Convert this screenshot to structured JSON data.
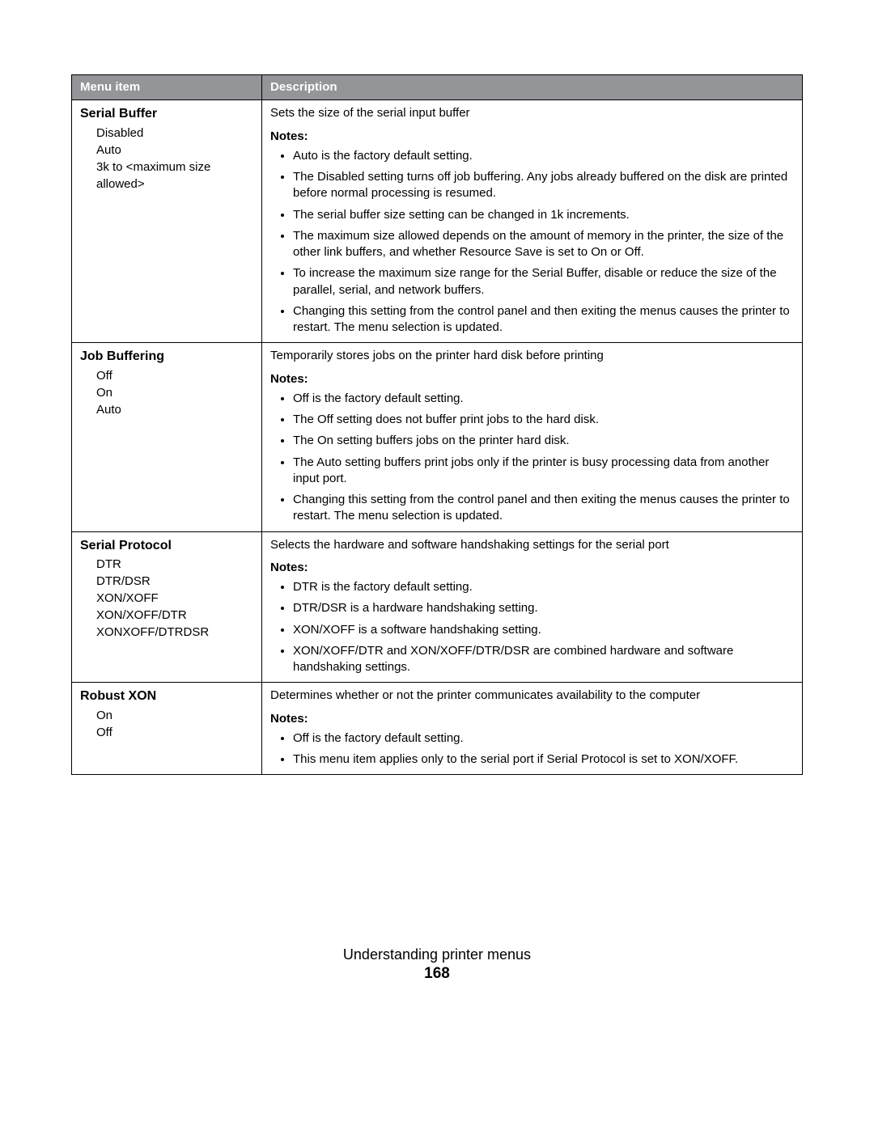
{
  "header": {
    "menu_item": "Menu item",
    "description": "Description"
  },
  "rows": [
    {
      "title": "Serial Buffer",
      "options": [
        "Disabled",
        "Auto",
        "3k to <maximum size allowed>"
      ],
      "summary": "Sets the size of the serial input buffer",
      "notes_label": "Notes:",
      "notes": [
        "Auto is the factory default setting.",
        "The Disabled setting turns off job buffering. Any jobs already buffered on the disk are printed before normal processing is resumed.",
        "The serial buffer size setting can be changed in 1k increments.",
        "The maximum size allowed depends on the amount of memory in the printer, the size of the other link buffers, and whether Resource Save is set to On or Off.",
        "To increase the maximum size range for the Serial Buffer, disable or reduce the size of the parallel, serial, and network buffers.",
        "Changing this setting from the control panel and then exiting the menus causes the printer to restart. The menu selection is updated."
      ]
    },
    {
      "title": "Job Buffering",
      "options": [
        "Off",
        "On",
        "Auto"
      ],
      "summary": "Temporarily stores jobs on the printer hard disk before printing",
      "notes_label": "Notes:",
      "notes": [
        "Off is the factory default setting.",
        "The Off setting does not buffer print jobs to the hard disk.",
        "The On setting buffers jobs on the printer hard disk.",
        "The Auto setting buffers print jobs only if the printer is busy processing data from another input port.",
        "Changing this setting from the control panel and then exiting the menus causes the printer to restart. The menu selection is updated."
      ]
    },
    {
      "title": "Serial Protocol",
      "options": [
        "DTR",
        "DTR/DSR",
        "XON/XOFF",
        "XON/XOFF/DTR",
        "XONXOFF/DTRDSR"
      ],
      "summary": "Selects the hardware and software handshaking settings for the serial port",
      "notes_label": "Notes:",
      "notes": [
        "DTR is the factory default setting.",
        "DTR/DSR is a hardware handshaking setting.",
        "XON/XOFF is a software handshaking setting.",
        "XON/XOFF/DTR and XON/XOFF/DTR/DSR are combined hardware and software handshaking settings."
      ]
    },
    {
      "title": "Robust XON",
      "options": [
        "On",
        "Off"
      ],
      "summary": "Determines whether or not the printer communicates availability to the computer",
      "notes_label": "Notes:",
      "notes": [
        "Off is the factory default setting.",
        "This menu item applies only to the serial port if Serial Protocol is set to XON/XOFF."
      ]
    }
  ],
  "footer": {
    "title": "Understanding printer menus",
    "page": "168"
  }
}
